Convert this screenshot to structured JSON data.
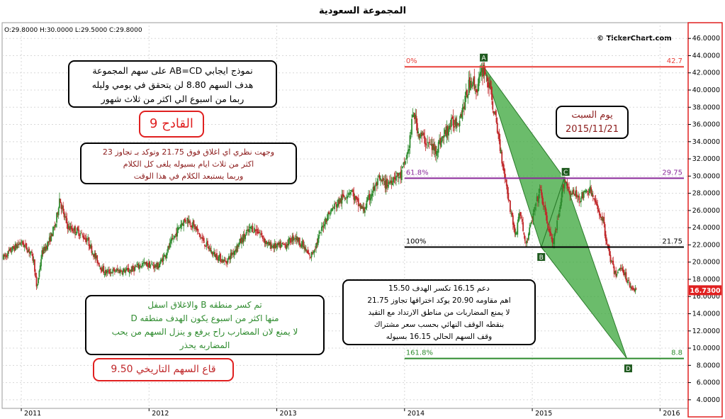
{
  "header": {
    "title": "المجموعة السعودية",
    "ohlc": "O:29.8000  H:30.0000  L:29.5000  C:29.8000",
    "copyright": "© TickerChart.com"
  },
  "colors": {
    "up": "#2e8b2e",
    "down": "#c0282a",
    "fib_top": "#e8403a",
    "fib_618": "#8a2a9a",
    "fib_100": "#000000",
    "fib_1618": "#2e8b2e",
    "pattern_fill": "#3aa63a",
    "price_tag": "#e02020"
  },
  "annotations": {
    "pattern_box": [
      "نموذج ايجابي AB=CD على سهم المجموعة",
      "هدف السهم 8.80 لن يتحقق في يومي وليله",
      "ربما من اسبوع الي اكثر من ثلاث شهور"
    ],
    "qadeh_box": "القادح 9",
    "view_box": [
      "وجهت نظري اي اغلاق فوق 21.75 وتوكد بـ تجاوز 23",
      "اكثر من ثلاث ايام بسيوله يلغى كل الكلام",
      "وربما يستبعد الكلام في هذا الوقت"
    ],
    "date_box": [
      "يوم السبت",
      "2015/11/21"
    ],
    "support_box": [
      "دعم 16.15 تكسر الهدف 15.50",
      "اهم مقاومه 20.90 يوكد اختراقها تجاوز 21.75",
      "لا يمنع المضاربات من مناطق الارتداد مع التقيد",
      "بنقطه الوقف النهائي بحسب سعر مشتراك",
      "وقف السهم الحالي 16.15 بسيوله"
    ],
    "break_box": [
      "تم كسر منطقه B والاغلاق اسفل",
      "منها اكثر من اسبوع يكون الهدف منطقه D",
      "لا يمنع لان المضارب راح يرفع و ينزل السهم من يحب",
      "المضاربه يحذر"
    ],
    "bottom_box": "قاع السهم التاريخي 9.50"
  },
  "chart_data": {
    "type": "candlestick",
    "title": "المجموعة السعودية",
    "x_ticks": [
      "2011",
      "2012",
      "2013",
      "2014",
      "2015",
      "2016"
    ],
    "y_ticks": [
      "46.0000",
      "44.0000",
      "42.0000",
      "40.0000",
      "38.0000",
      "36.0000",
      "34.0000",
      "32.0000",
      "30.0000",
      "28.0000",
      "26.0000",
      "24.0000",
      "22.0000",
      "20.0000",
      "18.0000",
      "16.0000",
      "14.0000",
      "12.0000",
      "10.0000",
      "8.0000",
      "6.0000",
      "4.0000"
    ],
    "ylim": [
      3,
      47.5
    ],
    "xlim": [
      2010.85,
      2016.22
    ],
    "last_price": "16.7300",
    "price_path": [
      [
        2010.86,
        20.5
      ],
      [
        2010.93,
        21.5
      ],
      [
        2011.0,
        22.3
      ],
      [
        2011.07,
        21.2
      ],
      [
        2011.1,
        20.0
      ],
      [
        2011.12,
        16.8
      ],
      [
        2011.16,
        21.0
      ],
      [
        2011.22,
        22.5
      ],
      [
        2011.27,
        24.5
      ],
      [
        2011.3,
        27.5
      ],
      [
        2011.33,
        25.5
      ],
      [
        2011.37,
        24.0
      ],
      [
        2011.45,
        23.5
      ],
      [
        2011.52,
        22.5
      ],
      [
        2011.58,
        20.5
      ],
      [
        2011.65,
        18.8
      ],
      [
        2011.75,
        19.0
      ],
      [
        2011.85,
        19.0
      ],
      [
        2011.95,
        19.8
      ],
      [
        2012.07,
        19.5
      ],
      [
        2012.13,
        21.0
      ],
      [
        2012.2,
        23.0
      ],
      [
        2012.25,
        24.5
      ],
      [
        2012.3,
        25.0
      ],
      [
        2012.36,
        24.0
      ],
      [
        2012.42,
        22.5
      ],
      [
        2012.5,
        21.0
      ],
      [
        2012.55,
        20.5
      ],
      [
        2012.6,
        20.0
      ],
      [
        2012.65,
        21.0
      ],
      [
        2012.72,
        22.5
      ],
      [
        2012.8,
        24.0
      ],
      [
        2012.86,
        23.5
      ],
      [
        2012.93,
        22.0
      ],
      [
        2013.0,
        21.8
      ],
      [
        2013.07,
        22.0
      ],
      [
        2013.14,
        23.0
      ],
      [
        2013.2,
        22.0
      ],
      [
        2013.26,
        20.5
      ],
      [
        2013.32,
        22.5
      ],
      [
        2013.38,
        25.0
      ],
      [
        2013.45,
        26.5
      ],
      [
        2013.52,
        27.5
      ],
      [
        2013.58,
        28.5
      ],
      [
        2013.62,
        27.0
      ],
      [
        2013.68,
        26.0
      ],
      [
        2013.74,
        28.0
      ],
      [
        2013.8,
        29.5
      ],
      [
        2013.86,
        29.0
      ],
      [
        2013.92,
        30.0
      ],
      [
        2013.97,
        30.0
      ],
      [
        2014.03,
        33.0
      ],
      [
        2014.07,
        37.5
      ],
      [
        2014.11,
        35.0
      ],
      [
        2014.17,
        34.0
      ],
      [
        2014.24,
        33.0
      ],
      [
        2014.3,
        34.5
      ],
      [
        2014.36,
        36.0
      ],
      [
        2014.42,
        36.5
      ],
      [
        2014.47,
        38.5
      ],
      [
        2014.52,
        41.5
      ],
      [
        2014.56,
        40.0
      ],
      [
        2014.62,
        42.7
      ],
      [
        2014.67,
        40.0
      ],
      [
        2014.73,
        35.0
      ],
      [
        2014.78,
        30.5
      ],
      [
        2014.83,
        26.0
      ],
      [
        2014.87,
        23.0
      ],
      [
        2014.9,
        26.0
      ],
      [
        2014.95,
        22.0
      ],
      [
        2015.0,
        25.0
      ],
      [
        2015.06,
        28.5
      ],
      [
        2015.11,
        25.0
      ],
      [
        2015.16,
        22.0
      ],
      [
        2015.21,
        25.5
      ],
      [
        2015.25,
        29.75
      ],
      [
        2015.3,
        28.0
      ],
      [
        2015.38,
        27.5
      ],
      [
        2015.45,
        28.5
      ],
      [
        2015.5,
        26.5
      ],
      [
        2015.55,
        25.0
      ],
      [
        2015.6,
        21.0
      ],
      [
        2015.65,
        18.5
      ],
      [
        2015.7,
        19.5
      ],
      [
        2015.74,
        18.0
      ],
      [
        2015.78,
        17.0
      ],
      [
        2015.82,
        16.73
      ]
    ],
    "fibonacci": [
      {
        "label_left": "0%",
        "label_right": "42.7",
        "price": 42.7,
        "x_start": 2014.0,
        "color_key": "fib_top"
      },
      {
        "label_left": "61.8%",
        "label_right": "29.75",
        "price": 29.75,
        "x_start": 2014.0,
        "color_key": "fib_618"
      },
      {
        "label_left": "100%",
        "label_right": "21.75",
        "price": 21.75,
        "x_start": 2014.0,
        "color_key": "fib_100"
      },
      {
        "label_left": "161.8%",
        "label_right": "8.8",
        "price": 8.8,
        "x_start": 2014.0,
        "color_key": "fib_1618"
      }
    ],
    "pattern_points": [
      {
        "label": "A",
        "x": 2014.62,
        "y": 42.7
      },
      {
        "label": "B",
        "x": 2015.07,
        "y": 21.75
      },
      {
        "label": "C",
        "x": 2015.25,
        "y": 29.75
      },
      {
        "label": "D",
        "x": 2015.74,
        "y": 8.8
      }
    ]
  }
}
